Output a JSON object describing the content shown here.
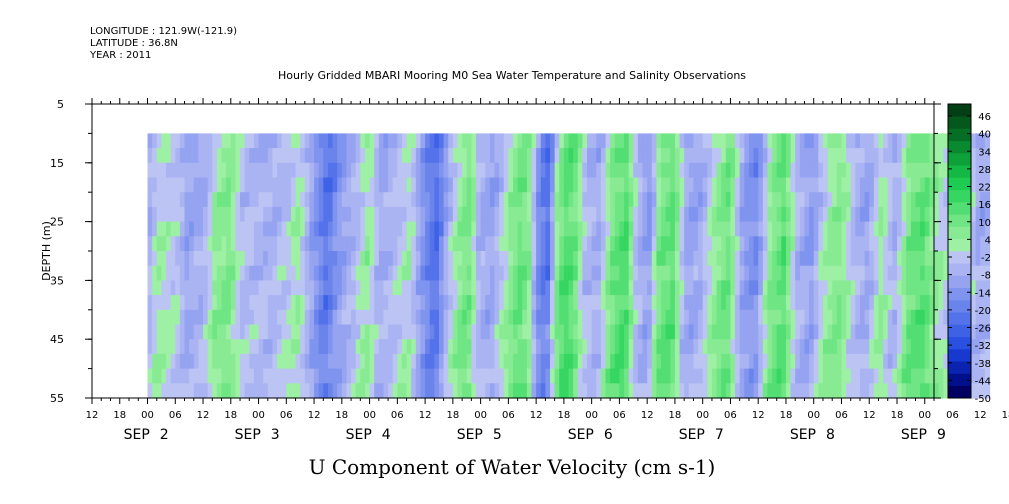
{
  "header": {
    "longitude": "LONGITUDE : 121.9W(-121.9)",
    "latitude": "LATITUDE : 36.8N",
    "year": "YEAR : 2011"
  },
  "chart_data": {
    "type": "heatmap",
    "title": "Hourly Gridded MBARI Mooring M0 Sea Water Temperature and Salinity Observations",
    "xlabel": "U Component of Water Velocity (cm s-1)",
    "ylabel": "DEPTH (m)",
    "ylim": [
      55,
      5
    ],
    "yticks": [
      5,
      15,
      25,
      35,
      45,
      55
    ],
    "x_hour_ticks": [
      "12",
      "18",
      "00",
      "06",
      "12",
      "18",
      "00",
      "06",
      "12",
      "18",
      "00",
      "06",
      "12",
      "18",
      "00",
      "06",
      "12",
      "18",
      "00",
      "06",
      "12",
      "18",
      "00",
      "06",
      "12",
      "18",
      "00",
      "06",
      "12",
      "18",
      "00",
      "06",
      "12",
      "18",
      "00",
      "06",
      "12"
    ],
    "x_day_labels": [
      {
        "month": "SEP",
        "day": "2"
      },
      {
        "month": "SEP",
        "day": "3"
      },
      {
        "month": "SEP",
        "day": "4"
      },
      {
        "month": "SEP",
        "day": "5"
      },
      {
        "month": "SEP",
        "day": "6"
      },
      {
        "month": "SEP",
        "day": "7"
      },
      {
        "month": "SEP",
        "day": "8"
      },
      {
        "month": "SEP",
        "day": "9"
      }
    ],
    "data_depth_range": [
      10,
      55
    ],
    "colorbar": {
      "labels": [
        "46",
        "40",
        "34",
        "28",
        "22",
        "16",
        "10",
        "4",
        "-2",
        "-8",
        "-14",
        "-20",
        "-26",
        "-32",
        "-38",
        "-44",
        "-50"
      ],
      "min": -50,
      "max": 50,
      "step": 3
    },
    "colors": {
      "green_strong": "#1fd85a",
      "green_light": "#99f0a8",
      "blue_light": "#a6aef0",
      "blue_mid": "#8a94ec",
      "blue_strong": "#5a6ae6"
    },
    "u_profile": [
      {
        "t": "2011-09-01T22:00",
        "u": -6
      },
      {
        "t": "2011-09-02T00:00",
        "u": 2
      },
      {
        "t": "2011-09-02T04:00",
        "u": -2
      },
      {
        "t": "2011-09-02T06:00",
        "u": -10
      },
      {
        "t": "2011-09-02T10:00",
        "u": -6
      },
      {
        "t": "2011-09-02T12:00",
        "u": 4
      },
      {
        "t": "2011-09-02T15:00",
        "u": 8
      },
      {
        "t": "2011-09-02T18:00",
        "u": -4
      },
      {
        "t": "2011-09-03T00:00",
        "u": -6
      },
      {
        "t": "2011-09-03T04:00",
        "u": -2
      },
      {
        "t": "2011-09-03T06:00",
        "u": 3
      },
      {
        "t": "2011-09-03T09:00",
        "u": -10
      },
      {
        "t": "2011-09-03T12:00",
        "u": -22
      },
      {
        "t": "2011-09-03T15:00",
        "u": -12
      },
      {
        "t": "2011-09-03T18:00",
        "u": -6
      },
      {
        "t": "2011-09-03T21:00",
        "u": 4
      },
      {
        "t": "2011-09-04T00:00",
        "u": -8
      },
      {
        "t": "2011-09-04T03:00",
        "u": -4
      },
      {
        "t": "2011-09-04T06:00",
        "u": 2
      },
      {
        "t": "2011-09-04T09:00",
        "u": -14
      },
      {
        "t": "2011-09-04T12:00",
        "u": -24
      },
      {
        "t": "2011-09-04T14:00",
        "u": -8
      },
      {
        "t": "2011-09-04T17:00",
        "u": 6
      },
      {
        "t": "2011-09-04T19:00",
        "u": 10
      },
      {
        "t": "2011-09-04T21:00",
        "u": -6
      },
      {
        "t": "2011-09-05T00:00",
        "u": -10
      },
      {
        "t": "2011-09-05T03:00",
        "u": 2
      },
      {
        "t": "2011-09-05T06:00",
        "u": 12
      },
      {
        "t": "2011-09-05T08:00",
        "u": 6
      },
      {
        "t": "2011-09-05T10:00",
        "u": -16
      },
      {
        "t": "2011-09-05T12:00",
        "u": -22
      },
      {
        "t": "2011-09-05T14:00",
        "u": 6
      },
      {
        "t": "2011-09-05T16:00",
        "u": 16
      },
      {
        "t": "2011-09-05T18:00",
        "u": 10
      },
      {
        "t": "2011-09-05T20:00",
        "u": -4
      },
      {
        "t": "2011-09-05T23:00",
        "u": -8
      },
      {
        "t": "2011-09-06T02:00",
        "u": 10
      },
      {
        "t": "2011-09-06T05:00",
        "u": 16
      },
      {
        "t": "2011-09-06T07:00",
        "u": -4
      },
      {
        "t": "2011-09-06T10:00",
        "u": -12
      },
      {
        "t": "2011-09-06T12:00",
        "u": 8
      },
      {
        "t": "2011-09-06T15:00",
        "u": 14
      },
      {
        "t": "2011-09-06T18:00",
        "u": -10
      },
      {
        "t": "2011-09-06T21:00",
        "u": -8
      },
      {
        "t": "2011-09-07T00:00",
        "u": 4
      },
      {
        "t": "2011-09-07T03:00",
        "u": 12
      },
      {
        "t": "2011-09-07T06:00",
        "u": -10
      },
      {
        "t": "2011-09-07T09:00",
        "u": -16
      },
      {
        "t": "2011-09-07T12:00",
        "u": 6
      },
      {
        "t": "2011-09-07T15:00",
        "u": 14
      },
      {
        "t": "2011-09-07T18:00",
        "u": -6
      },
      {
        "t": "2011-09-07T21:00",
        "u": -12
      },
      {
        "t": "2011-09-08T00:00",
        "u": 2
      },
      {
        "t": "2011-09-08T03:00",
        "u": 8
      },
      {
        "t": "2011-09-08T06:00",
        "u": -4
      },
      {
        "t": "2011-09-08T09:00",
        "u": -10
      },
      {
        "t": "2011-09-08T12:00",
        "u": 4
      },
      {
        "t": "2011-09-08T15:00",
        "u": -8
      },
      {
        "t": "2011-09-08T18:00",
        "u": 10
      },
      {
        "t": "2011-09-08T21:00",
        "u": 14
      },
      {
        "t": "2011-09-09T00:00",
        "u": 4
      },
      {
        "t": "2011-09-09T03:00",
        "u": -4
      },
      {
        "t": "2011-09-09T06:00",
        "u": 6
      },
      {
        "t": "2011-09-09T09:00",
        "u": -8
      },
      {
        "t": "2011-09-09T12:00",
        "u": -6
      }
    ]
  }
}
